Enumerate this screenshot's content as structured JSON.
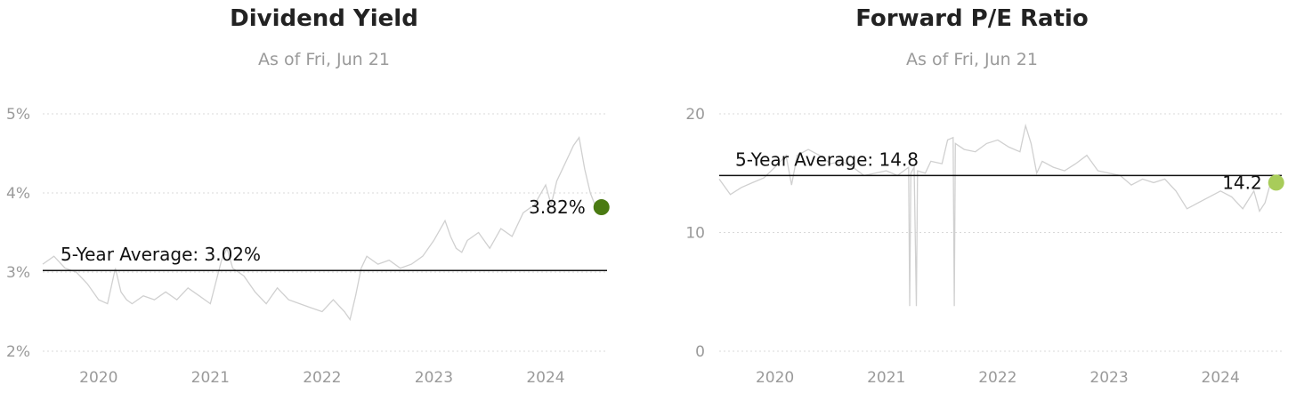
{
  "charts": [
    {
      "title": "Dividend Yield",
      "subtitle": "As of Fri, Jun 21",
      "chart_data": {
        "type": "line",
        "title": "Dividend Yield",
        "subtitle": "As of Fri, Jun 21",
        "xlabel": "",
        "ylabel": "",
        "x_ticks": [
          "2020",
          "2021",
          "2022",
          "2023",
          "2024"
        ],
        "y_ticks": [
          "2%",
          "3%",
          "4%",
          "5%"
        ],
        "xlim": [
          2019.5,
          2024.55
        ],
        "ylim": [
          2,
          5
        ],
        "grid": true,
        "series": [
          {
            "x": [
              2019.5,
              2019.6,
              2019.7,
              2019.8,
              2019.9,
              2020.0,
              2020.08,
              2020.15,
              2020.2,
              2020.25,
              2020.3,
              2020.4,
              2020.5,
              2020.6,
              2020.7,
              2020.8,
              2020.9,
              2021.0,
              2021.1,
              2021.15,
              2021.2,
              2021.3,
              2021.4,
              2021.5,
              2021.6,
              2021.7,
              2021.8,
              2021.9,
              2022.0,
              2022.1,
              2022.2,
              2022.25,
              2022.3,
              2022.35,
              2022.4,
              2022.5,
              2022.6,
              2022.7,
              2022.8,
              2022.9,
              2023.0,
              2023.1,
              2023.15,
              2023.2,
              2023.25,
              2023.3,
              2023.4,
              2023.5,
              2023.6,
              2023.7,
              2023.8,
              2023.9,
              2024.0,
              2024.05,
              2024.1,
              2024.15,
              2024.2,
              2024.25,
              2024.3,
              2024.35,
              2024.4,
              2024.45
            ],
            "y": [
              3.1,
              3.2,
              3.05,
              3.0,
              2.85,
              2.65,
              2.6,
              3.05,
              2.75,
              2.65,
              2.6,
              2.7,
              2.65,
              2.75,
              2.65,
              2.8,
              2.7,
              2.6,
              3.15,
              3.3,
              3.05,
              2.95,
              2.75,
              2.6,
              2.8,
              2.65,
              2.6,
              2.55,
              2.5,
              2.65,
              2.5,
              2.4,
              2.7,
              3.05,
              3.2,
              3.1,
              3.15,
              3.05,
              3.1,
              3.2,
              3.4,
              3.65,
              3.45,
              3.3,
              3.25,
              3.4,
              3.5,
              3.3,
              3.55,
              3.45,
              3.75,
              3.85,
              4.1,
              3.85,
              4.15,
              4.3,
              4.45,
              4.6,
              4.7,
              4.3,
              4.0,
              3.82
            ]
          }
        ],
        "average": {
          "label": "5-Year Average: 3.02%",
          "value": 3.02
        },
        "current": {
          "label": "3.82%",
          "x": 2024.5,
          "value": 3.82,
          "color": "#4a7a12"
        },
        "line_color": "#d0d0d0"
      }
    },
    {
      "title": "Forward P/E Ratio",
      "subtitle": "As of Fri, Jun 21",
      "chart_data": {
        "type": "line",
        "title": "Forward P/E Ratio",
        "subtitle": "As of Fri, Jun 21",
        "xlabel": "",
        "ylabel": "",
        "x_ticks": [
          "2020",
          "2021",
          "2022",
          "2023",
          "2024"
        ],
        "y_ticks": [
          "0",
          "10",
          "20"
        ],
        "xlim": [
          2019.5,
          2024.55
        ],
        "ylim": [
          0,
          20
        ],
        "grid": true,
        "series": [
          {
            "x": [
              2019.5,
              2019.6,
              2019.7,
              2019.8,
              2019.9,
              2020.0,
              2020.1,
              2020.15,
              2020.2,
              2020.3,
              2020.4,
              2020.5,
              2020.6,
              2020.7,
              2020.8,
              2020.9,
              2021.0,
              2021.1,
              2021.2,
              2021.21,
              2021.22,
              2021.25,
              2021.27,
              2021.28,
              2021.35,
              2021.4,
              2021.5,
              2021.55,
              2021.6,
              2021.61,
              2021.62,
              2021.7,
              2021.8,
              2021.9,
              2022.0,
              2022.1,
              2022.2,
              2022.25,
              2022.3,
              2022.35,
              2022.4,
              2022.5,
              2022.6,
              2022.7,
              2022.8,
              2022.9,
              2023.0,
              2023.1,
              2023.2,
              2023.3,
              2023.4,
              2023.5,
              2023.6,
              2023.7,
              2023.8,
              2023.9,
              2024.0,
              2024.1,
              2024.2,
              2024.3,
              2024.35,
              2024.4,
              2024.45
            ],
            "y": [
              14.5,
              13.2,
              13.8,
              14.2,
              14.6,
              15.5,
              16.5,
              14.0,
              16.5,
              17.0,
              16.5,
              15.8,
              16.0,
              15.5,
              14.8,
              15.0,
              15.2,
              14.8,
              15.5,
              3.8,
              15.0,
              15.5,
              3.8,
              15.2,
              15.0,
              16.0,
              15.8,
              17.8,
              18.0,
              3.8,
              17.5,
              17.0,
              16.8,
              17.5,
              17.8,
              17.2,
              16.8,
              19.0,
              17.5,
              15.0,
              16.0,
              15.5,
              15.2,
              15.8,
              16.5,
              15.2,
              15.0,
              14.8,
              14.0,
              14.5,
              14.2,
              14.5,
              13.5,
              12.0,
              12.5,
              13.0,
              13.5,
              13.0,
              12.0,
              13.5,
              11.8,
              12.5,
              14.2
            ]
          }
        ],
        "average": {
          "label": "5-Year Average: 14.8",
          "value": 14.8
        },
        "current": {
          "label": "14.2",
          "x": 2024.5,
          "value": 14.2,
          "color": "#a8cc5a"
        },
        "line_color": "#d0d0d0"
      }
    }
  ]
}
